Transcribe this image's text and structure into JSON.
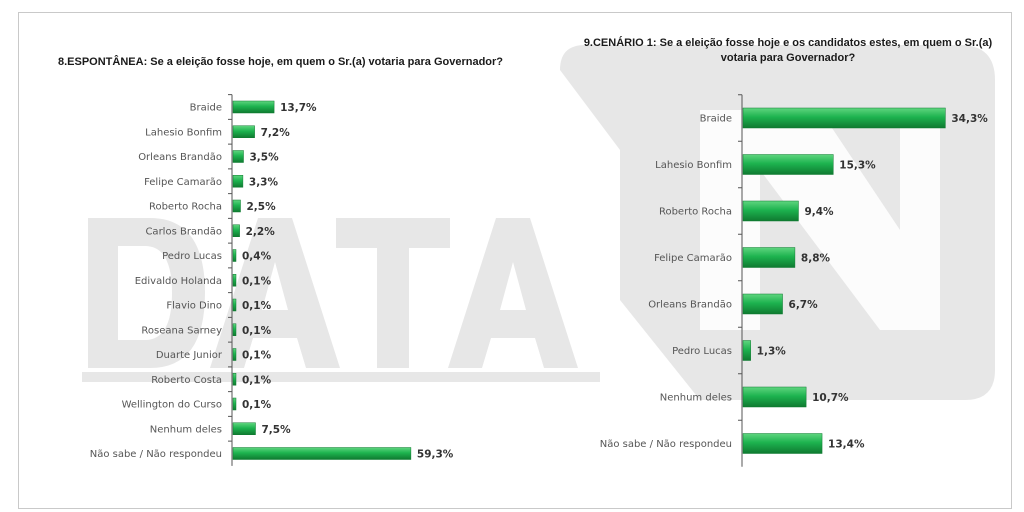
{
  "colors": {
    "bar": "#1db34f",
    "bar_dark": "#0f7a30",
    "bar_light": "#5fd57f",
    "watermark": "#e6e6e6",
    "axis": "#555555"
  },
  "watermark": {
    "text": "DATA"
  },
  "chart_data": [
    {
      "type": "bar",
      "orientation": "horizontal",
      "title": "8.ESPONTÂNEA: Se a eleição fosse hoje, em quem o Sr.(a) votaria para Governador?",
      "categories": [
        "Braide",
        "Lahesio Bonfim",
        "Orleans Brandão",
        "Felipe Camarão",
        "Roberto Rocha",
        "Carlos Brandão",
        "Pedro Lucas",
        "Edivaldo Holanda",
        "Flavio Dino",
        "Roseana Sarney",
        "Duarte Junior",
        "Roberto Costa",
        "Wellington do Curso",
        "Nenhum deles",
        "Não sabe / Não respondeu"
      ],
      "values": [
        13.7,
        7.2,
        3.5,
        3.3,
        2.5,
        2.2,
        0.4,
        0.1,
        0.1,
        0.1,
        0.1,
        0.1,
        0.1,
        7.5,
        59.3
      ],
      "value_labels": [
        "13,7%",
        "7,2%",
        "3,5%",
        "3,3%",
        "2,5%",
        "2,2%",
        "0,4%",
        "0,1%",
        "0,1%",
        "0,1%",
        "0,1%",
        "0,1%",
        "0,1%",
        "7,5%",
        "59,3%"
      ],
      "unit": "%",
      "grid": false,
      "legend": "none"
    },
    {
      "type": "bar",
      "orientation": "horizontal",
      "title": "9.CENÁRIO 1: Se a eleição fosse hoje e os candidatos estes, em quem o Sr.(a) votaria para Governador?",
      "categories": [
        "Braide",
        "Lahesio Bonfim",
        "Roberto Rocha",
        "Felipe Camarão",
        "Orleans Brandão",
        "Pedro Lucas",
        "Nenhum deles",
        "Não sabe / Não respondeu"
      ],
      "values": [
        34.3,
        15.3,
        9.4,
        8.8,
        6.7,
        1.3,
        10.7,
        13.4
      ],
      "value_labels": [
        "34,3%",
        "15,3%",
        "9,4%",
        "8,8%",
        "6,7%",
        "1,3%",
        "10,7%",
        "13,4%"
      ],
      "unit": "%",
      "grid": false,
      "legend": "none"
    }
  ]
}
